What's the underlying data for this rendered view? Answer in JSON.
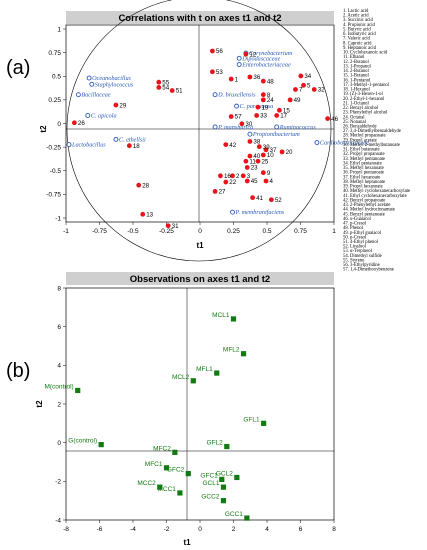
{
  "panel_a_label": "(a)",
  "panel_b_label": "(b)",
  "chart_data": [
    {
      "type": "scatter",
      "title": "Correlations with t on axes t1 and t2",
      "xlabel": "t1",
      "ylabel": "t2",
      "xlim": [
        -1,
        1
      ],
      "ylim": [
        -1,
        1
      ],
      "xticks": [
        "-1",
        "-0.75",
        "-0.5",
        "-0.25",
        "0",
        "0.25",
        "0.5",
        "0.75",
        "1"
      ],
      "yticks": [
        "1",
        "0.75",
        "0.5",
        "0.25",
        "0",
        "-0.25",
        "-0.5",
        "-0.75",
        "-1"
      ],
      "grid": false,
      "colors": {
        "compound": "#e8141b",
        "bacteria": "#2a5ab8"
      },
      "series": [
        {
          "points": [
            {
              "label": "56",
              "x": 0.1,
              "y": 0.75
            },
            {
              "label": "53",
              "x": 0.1,
              "y": 0.55
            },
            {
              "label": "12",
              "x": 0.35,
              "y": 0.72
            },
            {
              "label": "55",
              "x": -0.3,
              "y": 0.45
            },
            {
              "label": "51",
              "x": -0.2,
              "y": 0.37
            },
            {
              "label": "54",
              "x": -0.3,
              "y": 0.4
            },
            {
              "label": "36",
              "x": 0.38,
              "y": 0.5
            },
            {
              "label": "48",
              "x": 0.48,
              "y": 0.46
            },
            {
              "label": "34",
              "x": 0.76,
              "y": 0.51
            },
            {
              "label": "5",
              "x": 0.78,
              "y": 0.42
            },
            {
              "label": "7",
              "x": 0.72,
              "y": 0.38
            },
            {
              "label": "32",
              "x": 0.86,
              "y": 0.38
            },
            {
              "label": "49",
              "x": 0.68,
              "y": 0.28
            },
            {
              "label": "29",
              "x": -0.62,
              "y": 0.23
            },
            {
              "label": "24",
              "x": 0.48,
              "y": 0.28
            },
            {
              "label": "8",
              "x": 0.48,
              "y": 0.33
            },
            {
              "label": "1",
              "x": 0.24,
              "y": 0.48
            },
            {
              "label": "33",
              "x": 0.43,
              "y": 0.13
            },
            {
              "label": "17",
              "x": 0.58,
              "y": 0.13
            },
            {
              "label": "19",
              "x": 0.44,
              "y": 0.21
            },
            {
              "label": "15",
              "x": 0.6,
              "y": 0.18
            },
            {
              "label": "57",
              "x": 0.24,
              "y": 0.12
            },
            {
              "label": "30",
              "x": 0.32,
              "y": 0.05
            },
            {
              "label": "46",
              "x": 0.96,
              "y": 0.1
            },
            {
              "label": "26",
              "x": -0.93,
              "y": 0.06
            },
            {
              "label": "18",
              "x": -0.52,
              "y": -0.16
            },
            {
              "label": "42",
              "x": 0.2,
              "y": -0.15
            },
            {
              "label": "38",
              "x": 0.38,
              "y": -0.12
            },
            {
              "label": "20",
              "x": 0.62,
              "y": -0.22
            },
            {
              "label": "37",
              "x": 0.5,
              "y": -0.2
            },
            {
              "label": "39",
              "x": 0.45,
              "y": -0.17
            },
            {
              "label": "40",
              "x": 0.38,
              "y": -0.26
            },
            {
              "label": "23",
              "x": 0.36,
              "y": -0.37
            },
            {
              "label": "10",
              "x": 0.48,
              "y": -0.25
            },
            {
              "label": "25",
              "x": 0.44,
              "y": -0.31
            },
            {
              "label": "11",
              "x": 0.35,
              "y": -0.31
            },
            {
              "label": "2",
              "x": 0.25,
              "y": -0.45
            },
            {
              "label": "3",
              "x": 0.33,
              "y": -0.45
            },
            {
              "label": "45",
              "x": 0.36,
              "y": -0.5
            },
            {
              "label": "9",
              "x": 0.48,
              "y": -0.42
            },
            {
              "label": "4",
              "x": 0.5,
              "y": -0.5
            },
            {
              "label": "16",
              "x": 0.16,
              "y": -0.45
            },
            {
              "label": "22",
              "x": 0.2,
              "y": -0.51
            },
            {
              "label": "27",
              "x": 0.12,
              "y": -0.6
            },
            {
              "label": "28",
              "x": -0.45,
              "y": -0.54
            },
            {
              "label": "41",
              "x": 0.4,
              "y": -0.66
            },
            {
              "label": "52",
              "x": 0.54,
              "y": -0.68
            },
            {
              "label": "13",
              "x": -0.42,
              "y": -0.82
            },
            {
              "label": "31",
              "x": -0.23,
              "y": -0.93
            }
          ]
        },
        {
          "points": [
            {
              "label": "Corynebacterium",
              "x": 0.35,
              "y": 0.73
            },
            {
              "label": "Dipodascaceae",
              "x": 0.3,
              "y": 0.68
            },
            {
              "label": "Enterobacteriaceae",
              "x": 0.3,
              "y": 0.62
            },
            {
              "label": "Oceanobacillus",
              "x": -0.82,
              "y": 0.49
            },
            {
              "label": "Staphylococcus",
              "x": -0.8,
              "y": 0.43
            },
            {
              "label": "Bacillaceae",
              "x": -0.9,
              "y": 0.33
            },
            {
              "label": "D. bruxellensis",
              "x": 0.12,
              "y": 0.33
            },
            {
              "label": "C. paraugosa",
              "x": 0.28,
              "y": 0.22
            },
            {
              "label": "C. apicola",
              "x": -0.83,
              "y": 0.13
            },
            {
              "label": "P. manshurica",
              "x": 0.12,
              "y": 0.02
            },
            {
              "label": "Ruminococcus",
              "x": 0.58,
              "y": 0.02
            },
            {
              "label": "Cardiobacteriaceae",
              "x": 0.88,
              "y": -0.13
            },
            {
              "label": "C. ethellsii",
              "x": -0.62,
              "y": -0.1
            },
            {
              "label": "Lactobacillus",
              "x": -0.97,
              "y": -0.15
            },
            {
              "label": "Propionibacterium",
              "x": 0.38,
              "y": -0.05
            },
            {
              "label": "P. membranifaciens",
              "x": 0.25,
              "y": -0.8
            }
          ]
        }
      ]
    },
    {
      "type": "scatter",
      "title": "Observations on axes t1 and t2",
      "xlabel": "t1",
      "ylabel": "t2",
      "xlim": [
        -8,
        8
      ],
      "ylim": [
        -4,
        8
      ],
      "xticks": [
        "-8",
        "-6",
        "-4",
        "-2",
        "0",
        "2",
        "4",
        "6",
        "8"
      ],
      "yticks": [
        "8",
        "6",
        "4",
        "2",
        "0",
        "-2",
        "-4"
      ],
      "grid": false,
      "colors": {
        "observation": "#117a11"
      },
      "series": [
        {
          "points": [
            {
              "label": "MCL1",
              "x": 2.0,
              "y": 6.4
            },
            {
              "label": "MFL2",
              "x": 2.6,
              "y": 4.6
            },
            {
              "label": "MFL1",
              "x": 1.0,
              "y": 3.6
            },
            {
              "label": "MCL2",
              "x": -0.4,
              "y": 3.2
            },
            {
              "label": "M(control)",
              "x": -7.3,
              "y": 2.7
            },
            {
              "label": "GFL1",
              "x": 3.8,
              "y": 1.0
            },
            {
              "label": "G(control)",
              "x": -5.9,
              "y": -0.1
            },
            {
              "label": "GFL2",
              "x": 1.6,
              "y": -0.2
            },
            {
              "label": "MFC2",
              "x": -1.5,
              "y": -0.5
            },
            {
              "label": "MFC1",
              "x": -2.0,
              "y": -1.3
            },
            {
              "label": "GFC2",
              "x": -0.7,
              "y": -1.6
            },
            {
              "label": "MCC2",
              "x": -2.4,
              "y": -2.3
            },
            {
              "label": "MCC1",
              "x": -1.2,
              "y": -2.6
            },
            {
              "label": "GCL2",
              "x": 2.2,
              "y": -1.8
            },
            {
              "label": "GFC1",
              "x": 1.3,
              "y": -1.9
            },
            {
              "label": "GCL1",
              "x": 1.4,
              "y": -2.3
            },
            {
              "label": "GCC2",
              "x": 1.4,
              "y": -3.0
            },
            {
              "label": "GCC1",
              "x": 2.8,
              "y": -3.9
            }
          ]
        }
      ]
    }
  ],
  "legend_list": [
    "1. Lactic acid",
    "2. Acetic acid",
    "3. Succinic acid",
    "4. Propionic acid",
    "5. Butyric acid",
    "6. Isobutyric acid",
    "7. Valeric acid",
    "8. Caproic acid",
    "9. Heptanoic acid",
    "10. Cyclohexanoic acid",
    "11. Ethanol",
    "12. 2-Butanol",
    "13. 1-Propanol",
    "14. 2-Butanol",
    "15. 1-Butanol",
    "16. 1-Pentanol",
    "17. 3-Methyl-1-pentanol",
    "18. 1-Hexanol",
    "19. (Z)-3-Hexen-1-ol",
    "20. 2-Ethyl-1-hexanol",
    "21. 1-Octanol",
    "22. Benzyl alcohol",
    "23. Phenylethyl alcohol",
    "24. Octanal",
    "25. Nonanal",
    "26. Benzaldehyde",
    "27. 3,4-Dimethylbenzaldehyde",
    "28. Methyl propanoate",
    "29. Propyl acetate",
    "30. Methyl 2-methylbutanoate",
    "31. Ethyl butanoate",
    "32. Propyl propanoate",
    "33. Methyl pentanoate",
    "34. Ethyl pentanoate",
    "35. Methyl hexanoate",
    "36. Propyl pentanoate",
    "37. Ethyl hexanoate",
    "38. Methyl heptanoate",
    "39. Propyl hexanoate",
    "40. Methyl cyclohexanecarboxylate",
    "41. Ethyl cyclohexanecarboxylate",
    "42. Benzyl propanoate",
    "43. 2-Phenylethyl acetate",
    "44. Methyl hydrocinnamate",
    "45. Benzyl pentanoate",
    "46. o-Guaiacol",
    "47. p-Cresol",
    "48. Phenol",
    "49. p-Ethyl guaiacol",
    "50. p-Cresol",
    "51. 4-Ethyl phenol",
    "52. Linalool",
    "53. α-Terpineol",
    "54. Dimethyl sulfide",
    "55. Styrene",
    "56. 3-Ethylpyridine",
    "57. 1,4-Dimethoxybenzene"
  ]
}
